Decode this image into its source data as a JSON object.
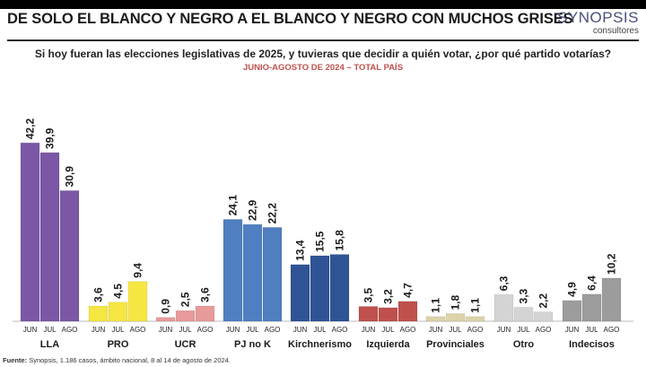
{
  "header": {
    "title": "DE SOLO EL BLANCO Y NEGRO A EL BLANCO Y NEGRO CON MUCHOS GRISES",
    "logo_main": "SYNOPSIS",
    "logo_sub": "consultores"
  },
  "chart_data": {
    "type": "bar",
    "title": "Si hoy fueran las elecciones legislativas de 2025, y tuvieras que decidir a quién votar, ¿por qué partido votarías?",
    "subtitle": "JUNIO-AGOSTO DE 2024 – TOTAL PAÍS",
    "sub_categories": [
      "JUN",
      "JUL",
      "AGO"
    ],
    "groups": [
      {
        "name": "LLA",
        "values": [
          42.2,
          39.9,
          30.9
        ],
        "labels": [
          "42,2",
          "39,9",
          "30,9"
        ],
        "color": "#7b57a6"
      },
      {
        "name": "PRO",
        "values": [
          3.6,
          4.5,
          9.4
        ],
        "labels": [
          "3,6",
          "4,5",
          "9,4"
        ],
        "color": "#f5e642"
      },
      {
        "name": "UCR",
        "values": [
          0.9,
          2.5,
          3.6
        ],
        "labels": [
          "0,9",
          "2,5",
          "3,6"
        ],
        "color": "#e79a9a"
      },
      {
        "name": "PJ no K",
        "values": [
          24.1,
          22.9,
          22.2
        ],
        "labels": [
          "24,1",
          "22,9",
          "22,2"
        ],
        "color": "#4f7fc1"
      },
      {
        "name": "Kirchnerismo",
        "values": [
          13.4,
          15.5,
          15.8
        ],
        "labels": [
          "13,4",
          "15,5",
          "15,8"
        ],
        "color": "#2f5496"
      },
      {
        "name": "Izquierda",
        "values": [
          3.5,
          3.2,
          4.7
        ],
        "labels": [
          "3,5",
          "3,2",
          "4,7"
        ],
        "color": "#c0504d"
      },
      {
        "name": "Provinciales",
        "values": [
          1.1,
          1.8,
          1.1
        ],
        "labels": [
          "1,1",
          "1,8",
          "1,1"
        ],
        "color": "#ddd3a8"
      },
      {
        "name": "Otro",
        "values": [
          6.3,
          3.3,
          2.2
        ],
        "labels": [
          "6,3",
          "3,3",
          "2,2"
        ],
        "color": "#d4d4d4"
      },
      {
        "name": "Indecisos",
        "values": [
          4.9,
          6.4,
          10.2
        ],
        "labels": [
          "4,9",
          "6,4",
          "10,2"
        ],
        "color": "#9c9c9c"
      }
    ],
    "ylim": [
      0,
      45
    ],
    "grid": false,
    "legend": "none"
  },
  "footer": {
    "source_label": "Fuente:",
    "source_text": "Synopsis, 1.186 casos, ámbito nacional, 8 al 14 de agosto de 2024."
  }
}
